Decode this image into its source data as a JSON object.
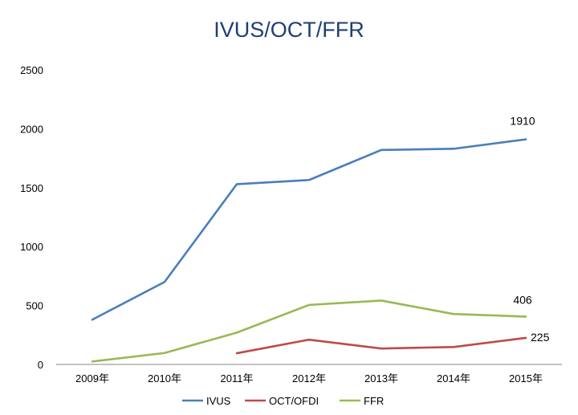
{
  "chart_data": {
    "type": "line",
    "title": "IVUS/OCT/FFR",
    "categories": [
      "2009年",
      "2010年",
      "2011年",
      "2012年",
      "2013年",
      "2014年",
      "2015年"
    ],
    "ylim": [
      0,
      2500
    ],
    "yticks": [
      "0",
      "500",
      "1000",
      "1500",
      "2000",
      "2500"
    ],
    "grid": false,
    "legend_position": "bottom",
    "series": [
      {
        "name": "IVUS",
        "color": "#4a7ebb",
        "values": [
          380,
          700,
          1530,
          1565,
          1820,
          1830,
          1910
        ]
      },
      {
        "name": "OCT/OFDI",
        "color": "#be4b48",
        "values": [
          null,
          null,
          95,
          210,
          135,
          148,
          225
        ]
      },
      {
        "name": "FFR",
        "color": "#98b954",
        "values": [
          25,
          97,
          270,
          505,
          542,
          428,
          406
        ]
      }
    ],
    "data_labels": [
      {
        "series": 0,
        "index": 6,
        "text": "1910"
      },
      {
        "series": 2,
        "index": 6,
        "text": "406"
      },
      {
        "series": 1,
        "index": 6,
        "text": "225"
      }
    ]
  }
}
